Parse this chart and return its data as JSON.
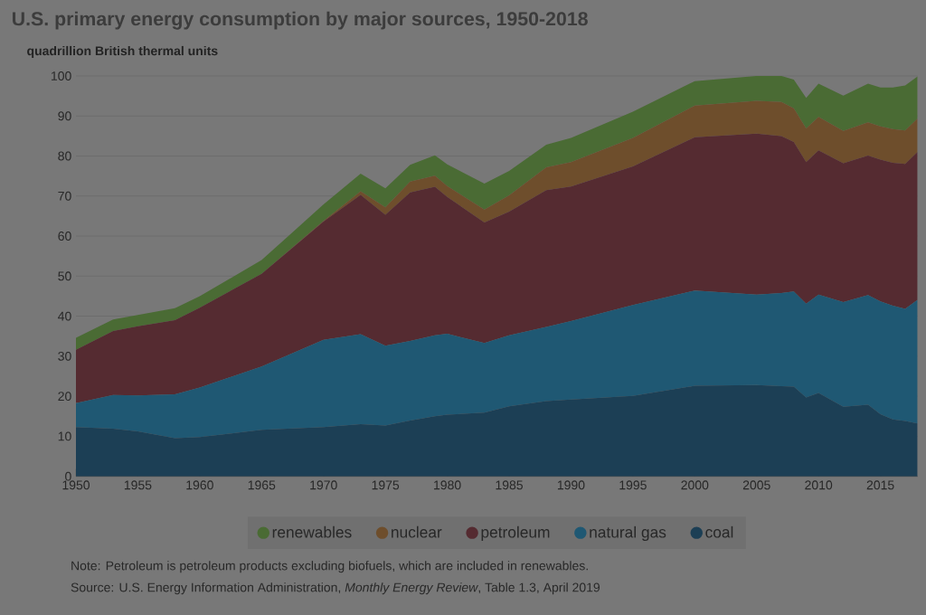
{
  "chart_data": {
    "type": "area",
    "stacked": true,
    "title": "U.S. primary energy consumption by major sources, 1950-2018",
    "ylabel": "quadrillion British thermal units",
    "x": [
      1950,
      1953,
      1955,
      1958,
      1960,
      1965,
      1970,
      1973,
      1975,
      1977,
      1979,
      1980,
      1983,
      1985,
      1988,
      1990,
      1995,
      2000,
      2005,
      2007,
      2008,
      2009,
      2010,
      2012,
      2014,
      2015,
      2016,
      2017,
      2018
    ],
    "series": [
      {
        "name": "coal",
        "color": "#1c3f55",
        "values": [
          12.3,
          11.9,
          11.2,
          9.5,
          9.8,
          11.6,
          12.3,
          13.0,
          12.7,
          13.9,
          15.0,
          15.4,
          15.9,
          17.5,
          18.8,
          19.2,
          20.1,
          22.6,
          22.8,
          22.5,
          22.4,
          19.7,
          20.8,
          17.4,
          17.9,
          15.5,
          14.2,
          13.8,
          13.2
        ]
      },
      {
        "name": "natural gas",
        "color": "#1f5873",
        "values": [
          6.0,
          8.4,
          9.0,
          11.0,
          12.4,
          15.8,
          21.8,
          22.5,
          19.9,
          19.9,
          20.2,
          20.2,
          17.4,
          17.7,
          18.5,
          19.6,
          22.7,
          23.8,
          22.6,
          23.3,
          23.8,
          23.4,
          24.6,
          26.1,
          27.4,
          28.2,
          28.4,
          28.0,
          30.9
        ]
      },
      {
        "name": "petroleum",
        "color": "#552b31",
        "values": [
          13.3,
          16.0,
          17.3,
          18.5,
          19.9,
          23.2,
          29.5,
          34.8,
          32.7,
          37.1,
          37.1,
          34.2,
          30.1,
          30.9,
          34.2,
          33.6,
          34.6,
          38.3,
          40.2,
          39.2,
          37.3,
          35.4,
          36.0,
          34.7,
          34.8,
          35.4,
          35.7,
          36.2,
          36.9
        ]
      },
      {
        "name": "nuclear",
        "color": "#6e4e2c",
        "values": [
          0,
          0,
          0,
          0,
          0,
          0,
          0.2,
          0.9,
          1.9,
          2.7,
          2.8,
          2.7,
          3.2,
          4.1,
          5.7,
          6.1,
          7.1,
          7.9,
          8.2,
          8.5,
          8.4,
          8.4,
          8.4,
          8.1,
          8.3,
          8.3,
          8.4,
          8.4,
          8.4
        ]
      },
      {
        "name": "renewables",
        "color": "#4a6b34",
        "values": [
          3.0,
          2.9,
          2.8,
          3.0,
          2.9,
          3.4,
          4.1,
          4.4,
          4.7,
          4.2,
          5.1,
          5.4,
          6.5,
          6.1,
          5.6,
          6.0,
          6.6,
          6.1,
          6.2,
          6.5,
          7.2,
          7.6,
          8.3,
          8.8,
          9.7,
          9.7,
          10.4,
          11.2,
          10.5
        ]
      }
    ],
    "xlim": [
      1950,
      2018
    ],
    "xticks": [
      1950,
      1955,
      1960,
      1965,
      1970,
      1975,
      1980,
      1985,
      1990,
      1995,
      2000,
      2005,
      2010,
      2015
    ],
    "ylim": [
      0,
      100
    ],
    "yticks": [
      0,
      10,
      20,
      30,
      40,
      50,
      60,
      70,
      80,
      90,
      100
    ],
    "grid": "y",
    "legend": "bottom",
    "annotations": [
      "Note: Petroleum is petroleum products excluding biofuels, which are included in renewables.",
      "Source: U.S. Energy Information Administration, *Monthly Energy Review*, Table 1.3, April 2019"
    ]
  }
}
